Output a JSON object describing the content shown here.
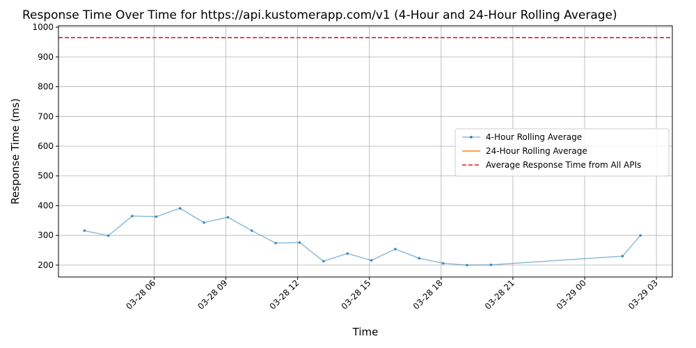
{
  "chart_data": {
    "type": "line",
    "title": "Response Time Over Time for https://api.kustomerapp.com/v1 (4-Hour and 24-Hour Rolling Average)",
    "xlabel": "Time",
    "ylabel": "Response Time (ms)",
    "ylim": [
      160,
      1005
    ],
    "xlim": [
      "2025-03-28 02:00",
      "2025-03-29 03:40"
    ],
    "y_ticks": [
      200,
      300,
      400,
      500,
      600,
      700,
      800,
      900,
      1000
    ],
    "x_ticks": [
      {
        "t": "2025-03-28 06:00",
        "label": "03-28 06"
      },
      {
        "t": "2025-03-28 09:00",
        "label": "03-28 09"
      },
      {
        "t": "2025-03-28 12:00",
        "label": "03-28 12"
      },
      {
        "t": "2025-03-28 15:00",
        "label": "03-28 15"
      },
      {
        "t": "2025-03-28 18:00",
        "label": "03-28 18"
      },
      {
        "t": "2025-03-28 21:00",
        "label": "03-28 21"
      },
      {
        "t": "2025-03-29 00:00",
        "label": "03-29 00"
      },
      {
        "t": "2025-03-29 03:00",
        "label": "03-29 03"
      }
    ],
    "grid": true,
    "legend_position": "center-right",
    "series": [
      {
        "name": "4-Hour Rolling Average",
        "color": "#1f77b4",
        "opacity": 0.5,
        "marker": "dot",
        "points": [
          {
            "t": "2025-03-28 03:05",
            "y": 316
          },
          {
            "t": "2025-03-28 04:05",
            "y": 299
          },
          {
            "t": "2025-03-28 05:05",
            "y": 365
          },
          {
            "t": "2025-03-28 06:05",
            "y": 363
          },
          {
            "t": "2025-03-28 07:05",
            "y": 391
          },
          {
            "t": "2025-03-28 08:05",
            "y": 343
          },
          {
            "t": "2025-03-28 09:05",
            "y": 361
          },
          {
            "t": "2025-03-28 10:05",
            "y": 316
          },
          {
            "t": "2025-03-28 11:05",
            "y": 274
          },
          {
            "t": "2025-03-28 12:05",
            "y": 276
          },
          {
            "t": "2025-03-28 13:05",
            "y": 213
          },
          {
            "t": "2025-03-28 14:05",
            "y": 239
          },
          {
            "t": "2025-03-28 15:05",
            "y": 216
          },
          {
            "t": "2025-03-28 16:05",
            "y": 254
          },
          {
            "t": "2025-03-28 17:05",
            "y": 223
          },
          {
            "t": "2025-03-28 18:05",
            "y": 206
          },
          {
            "t": "2025-03-28 19:05",
            "y": 200
          },
          {
            "t": "2025-03-28 20:05",
            "y": 201
          },
          {
            "t": "2025-03-29 01:35",
            "y": 230
          },
          {
            "t": "2025-03-29 02:20",
            "y": 300
          }
        ]
      },
      {
        "name": "24-Hour Rolling Average",
        "color": "#ff7f0e",
        "points": []
      }
    ],
    "reference_lines": [
      {
        "name": "Average Response Time from All APIs",
        "color": "#e31a1c",
        "dash": true,
        "y": 965
      }
    ]
  }
}
